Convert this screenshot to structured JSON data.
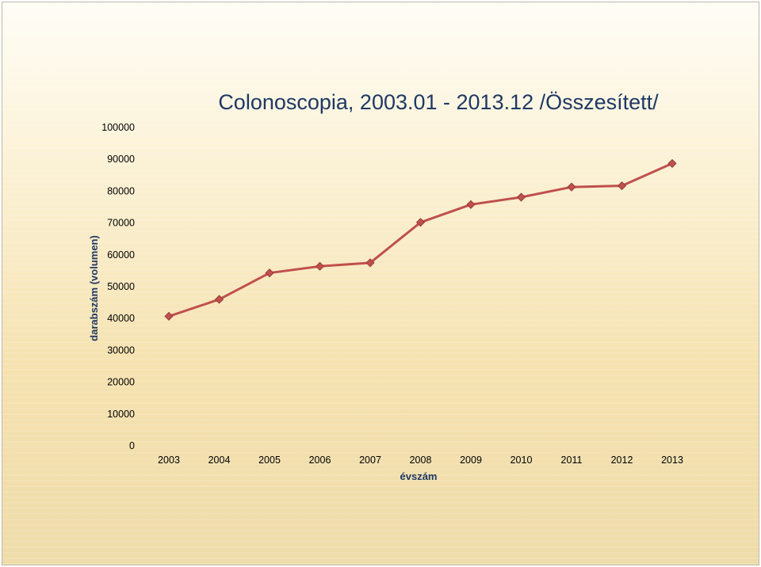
{
  "chart_data": {
    "type": "line",
    "title": "Colonoscopia, 2003.01 - 2013.12 /Összesített/",
    "xlabel": "évszám",
    "ylabel": "darabszám (volumen)",
    "ylim": [
      0,
      100000
    ],
    "yticks": [
      "0",
      "10000",
      "20000",
      "30000",
      "40000",
      "50000",
      "60000",
      "70000",
      "80000",
      "90000",
      "100000"
    ],
    "categories": [
      "2003",
      "2004",
      "2005",
      "2006",
      "2007",
      "2008",
      "2009",
      "2010",
      "2011",
      "2012",
      "2013"
    ],
    "series": [
      {
        "values": [
          40700,
          46000,
          54300,
          56400,
          57500,
          70200,
          75800,
          78100,
          81300,
          81700,
          88700
        ]
      }
    ],
    "grid": false,
    "legend": false,
    "colors": {
      "line": "#c0504d",
      "marker": "#c0504d",
      "title": "#1f3864",
      "axis_label": "#1f3864"
    }
  }
}
